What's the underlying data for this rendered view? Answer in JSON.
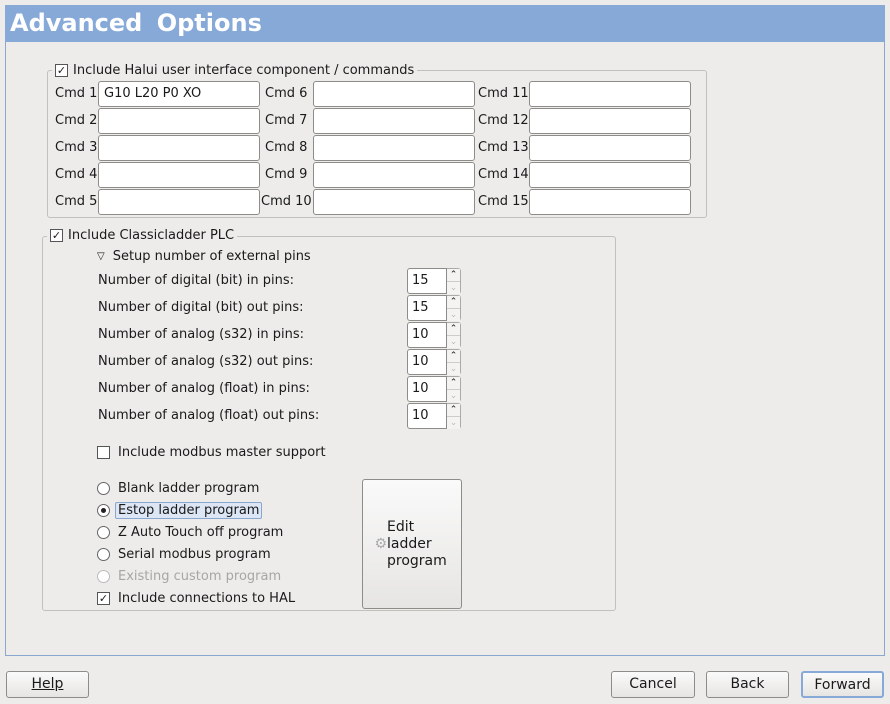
{
  "title": "Advanced  Options",
  "halui": {
    "label": "Include Halui user interface component / commands",
    "checked": true,
    "commands": [
      {
        "label": "Cmd 1",
        "value": "G10 L20 P0 XO"
      },
      {
        "label": "Cmd 2",
        "value": ""
      },
      {
        "label": "Cmd 3",
        "value": ""
      },
      {
        "label": "Cmd 4",
        "value": ""
      },
      {
        "label": "Cmd 5",
        "value": ""
      },
      {
        "label": "Cmd 6",
        "value": ""
      },
      {
        "label": "Cmd 7",
        "value": ""
      },
      {
        "label": "Cmd 8",
        "value": ""
      },
      {
        "label": "Cmd 9",
        "value": ""
      },
      {
        "label": "Cmd 10",
        "value": ""
      },
      {
        "label": "Cmd 11",
        "value": ""
      },
      {
        "label": "Cmd 12",
        "value": ""
      },
      {
        "label": "Cmd 13",
        "value": ""
      },
      {
        "label": "Cmd 14",
        "value": ""
      },
      {
        "label": "Cmd 15",
        "value": ""
      }
    ]
  },
  "classicladder": {
    "label": "Include Classicladder PLC",
    "checked": true,
    "expander": "Setup number of external pins",
    "pins": [
      {
        "label": "Number of digital (bit) in pins:",
        "value": "15"
      },
      {
        "label": "Number of digital (bit) out pins:",
        "value": "15"
      },
      {
        "label": "Number of analog (s32) in pins:",
        "value": "10"
      },
      {
        "label": "Number of analog (s32) out pins:",
        "value": "10"
      },
      {
        "label": "Number of analog (float) in pins:",
        "value": "10"
      },
      {
        "label": "Number of analog (float) out pins:",
        "value": "10"
      }
    ],
    "modbus": {
      "label": "Include modbus master support",
      "checked": false
    },
    "programs": [
      {
        "label": "Blank ladder program",
        "selected": false,
        "disabled": false
      },
      {
        "label": "Estop ladder program",
        "selected": true,
        "disabled": false
      },
      {
        "label": "Z Auto Touch off program",
        "selected": false,
        "disabled": false
      },
      {
        "label": "Serial modbus program",
        "selected": false,
        "disabled": false
      },
      {
        "label": "Existing custom program",
        "selected": false,
        "disabled": true
      }
    ],
    "hal": {
      "label": "Include connections to HAL",
      "checked": true
    },
    "edit_button": "Edit ladder program"
  },
  "buttons": {
    "help": "Help",
    "cancel": "Cancel",
    "back": "Back",
    "forward": "Forward"
  },
  "colors": {
    "banner": "#86a9d8",
    "focus": "#dce6f4"
  }
}
